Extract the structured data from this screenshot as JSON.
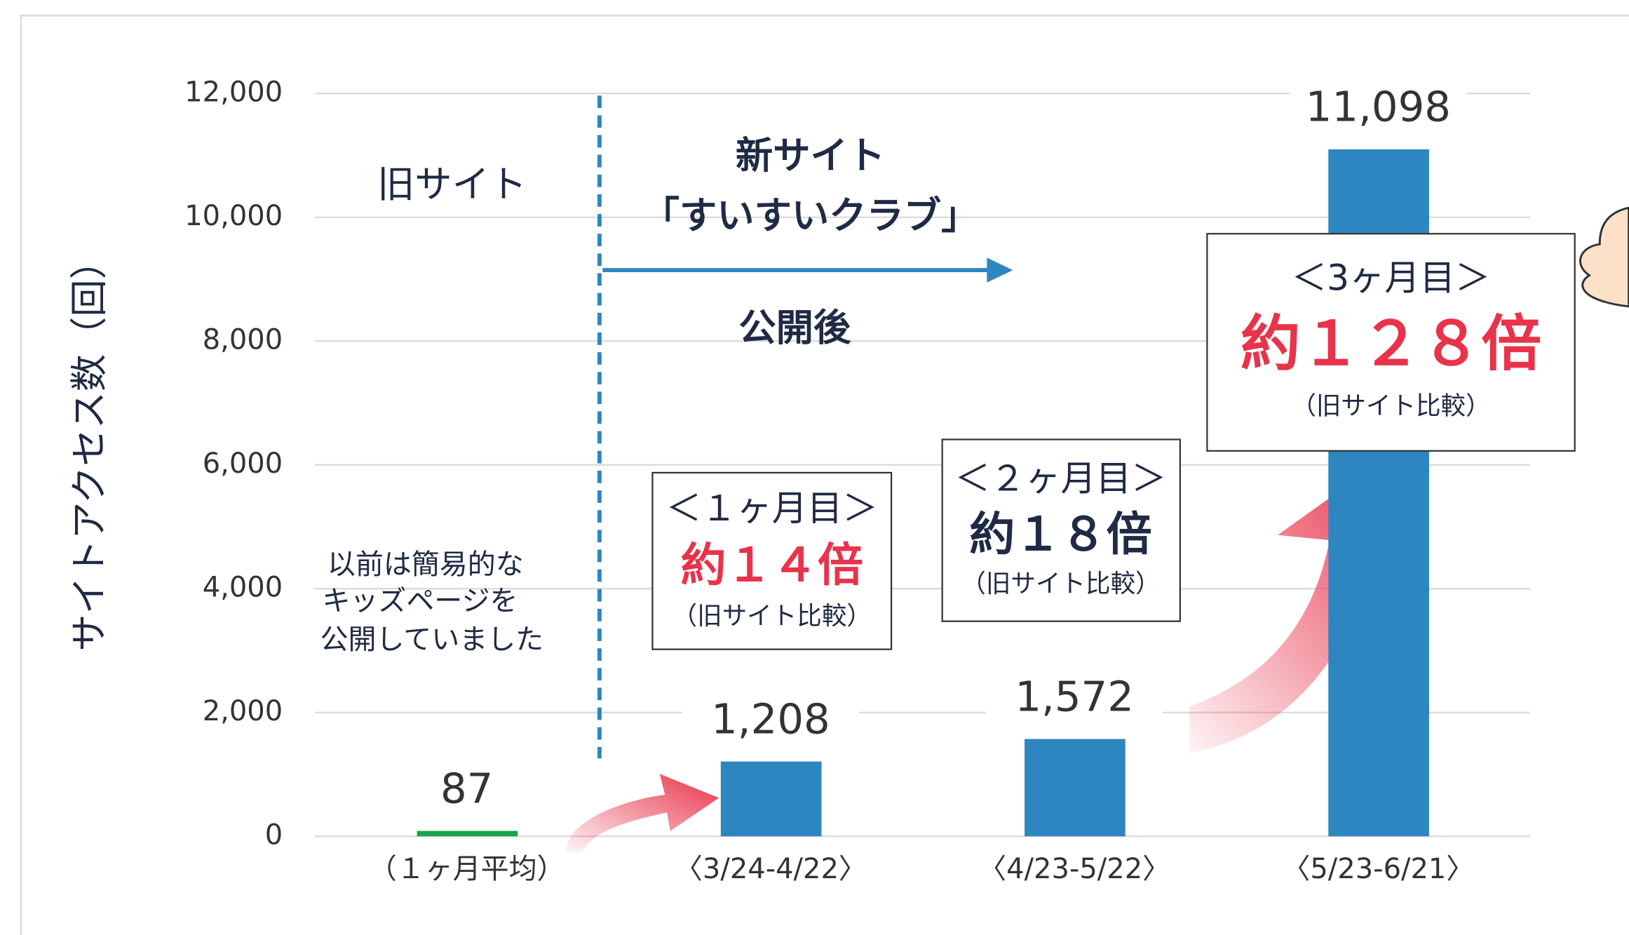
{
  "chart_data": {
    "type": "bar",
    "y_label": "サイトアクセス数（回）",
    "categories": [
      "（１ヶ月平均）",
      "〈3/24-4/22〉",
      "〈4/23-5/22〉",
      "〈5/23-6/21〉"
    ],
    "values": [
      87,
      1208,
      1572,
      11098
    ],
    "value_labels": [
      "87",
      "1,208",
      "1,572",
      "11,098"
    ],
    "colors": [
      "#1aa34a",
      "#2e86c1",
      "#2e86c1",
      "#2e86c1"
    ],
    "ylim": [
      0,
      12000
    ],
    "yticks": [
      0,
      {
        "value": 2000,
        "label": "2,000"
      },
      {
        "value": 4000,
        "label": "4,000"
      },
      {
        "value": 6000,
        "label": "6,000"
      },
      {
        "value": 8000,
        "label": "8,000"
      },
      {
        "value": 10000,
        "label": "10,000"
      },
      {
        "value": 12000,
        "label": "12,000"
      }
    ],
    "grid": true,
    "annotations": {
      "old_site": "旧サイト",
      "new_site": [
        "新サイト",
        "「すいすいクラブ」"
      ],
      "after_launch": "公開後",
      "note": [
        "以前は簡易的な",
        "キッズページを",
        "公開していました"
      ],
      "boxes": [
        {
          "period": "＜１ヶ月目＞",
          "ratio": "約１４倍",
          "note": "（旧サイト比較）"
        },
        {
          "period": "＜２ヶ月目＞",
          "ratio": "約１８倍",
          "note": "（旧サイト比較）"
        },
        {
          "period": "＜3ヶ月目＞",
          "ratio": "約１２８倍",
          "note": "（旧サイト比較）"
        }
      ]
    }
  }
}
